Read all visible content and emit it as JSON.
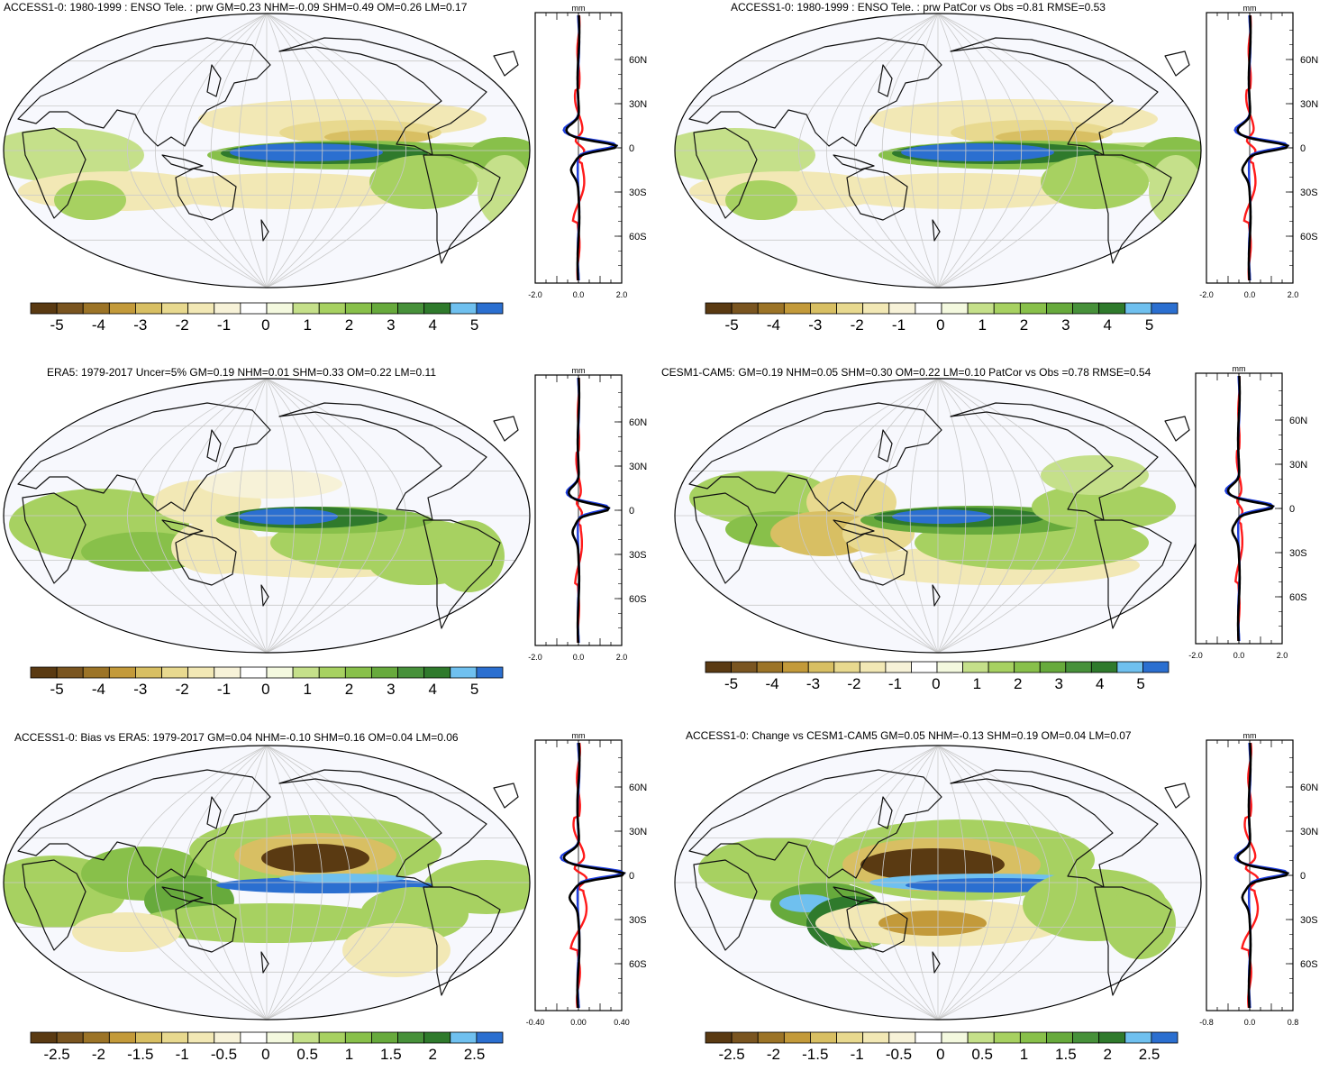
{
  "colors": {
    "ocean": "#f7f8fd",
    "grid": "#c9c9c9",
    "coast": "#111111",
    "obs_line": "#ff1a1a",
    "model_line": "#1f3fe0",
    "mmm_line": "#000000",
    "palette": [
      "#5a3a12",
      "#7a5520",
      "#9c7427",
      "#c39a3a",
      "#d8bf63",
      "#e8d98f",
      "#f2e8b5",
      "#f7f2d8",
      "#ffffff",
      "#f4f9df",
      "#c5e08a",
      "#a7d161",
      "#88c04a",
      "#67aa3c",
      "#47913a",
      "#2f7a2c",
      "#6fc0ef",
      "#2b6fd0"
    ]
  },
  "panels": [
    {
      "id": "p1",
      "title": "ACCESS1-0: 1980-1999 : ENSO Tele. : prw GM=0.23 NHM=-0.09 SHM=0.49 OM=0.26 LM=0.17",
      "colorbar": [
        "-5",
        "-4",
        "-3",
        "-2",
        "-1",
        "0",
        "1",
        "2",
        "3",
        "4",
        "5"
      ],
      "profile": {
        "unit": "mm",
        "lat_labels": [
          "60N",
          "30N",
          "0",
          "30S",
          "60S"
        ],
        "x_labels": [
          "-2.0",
          "0.0",
          "2.0"
        ]
      }
    },
    {
      "id": "p2",
      "title": "ACCESS1-0: 1980-1999 : ENSO Tele. : prw PatCor vs Obs =0.81 RMSE=0.53",
      "colorbar": [
        "-5",
        "-4",
        "-3",
        "-2",
        "-1",
        "0",
        "1",
        "2",
        "3",
        "4",
        "5"
      ],
      "profile": {
        "unit": "mm",
        "lat_labels": [
          "60N",
          "30N",
          "0",
          "30S",
          "60S"
        ],
        "x_labels": [
          "-2.0",
          "0.0",
          "2.0"
        ]
      }
    },
    {
      "id": "p3",
      "title": "ERA5: 1979-2017 Uncer=5% GM=0.19 NHM=0.01 SHM=0.33 OM=0.22 LM=0.11",
      "colorbar": [
        "-5",
        "-4",
        "-3",
        "-2",
        "-1",
        "0",
        "1",
        "2",
        "3",
        "4",
        "5"
      ],
      "profile": {
        "unit": "mm",
        "lat_labels": [
          "60N",
          "30N",
          "0",
          "30S",
          "60S"
        ],
        "x_labels": [
          "-2.0",
          "0.0",
          "2.0"
        ]
      }
    },
    {
      "id": "p4",
      "title": "CESM1-CAM5: GM=0.19 NHM=0.05 SHM=0.30 OM=0.22 LM=0.10 PatCor vs Obs =0.78 RMSE=0.54",
      "colorbar": [
        "-5",
        "-4",
        "-3",
        "-2",
        "-1",
        "0",
        "1",
        "2",
        "3",
        "4",
        "5"
      ],
      "profile": {
        "unit": "mm",
        "lat_labels": [
          "60N",
          "30N",
          "0",
          "30S",
          "60S"
        ],
        "x_labels": [
          "-2.0",
          "0.0",
          "2.0"
        ]
      }
    },
    {
      "id": "p5",
      "title": "ACCESS1-0: Bias vs ERA5: 1979-2017 GM=0.04 NHM=-0.10 SHM=0.16 OM=0.04 LM=0.06",
      "colorbar": [
        "-2.5",
        "-2",
        "-1.5",
        "-1",
        "-0.5",
        "0",
        "0.5",
        "1",
        "1.5",
        "2",
        "2.5"
      ],
      "profile": {
        "unit": "mm",
        "lat_labels": [
          "60N",
          "30N",
          "0",
          "30S",
          "60S"
        ],
        "x_labels": [
          "-0.40",
          "0.00",
          "0.40"
        ]
      }
    },
    {
      "id": "p6",
      "title": "ACCESS1-0: Change vs CESM1-CAM5 GM=0.05 NHM=-0.13 SHM=0.19 OM=0.04 LM=0.07",
      "colorbar": [
        "-2.5",
        "-2",
        "-1.5",
        "-1",
        "-0.5",
        "0",
        "0.5",
        "1",
        "1.5",
        "2",
        "2.5"
      ],
      "profile": {
        "unit": "mm",
        "lat_labels": [
          "60N",
          "30N",
          "0",
          "30S",
          "60S"
        ],
        "x_labels": [
          "-0.8",
          "0.0",
          "0.8"
        ]
      }
    }
  ]
}
